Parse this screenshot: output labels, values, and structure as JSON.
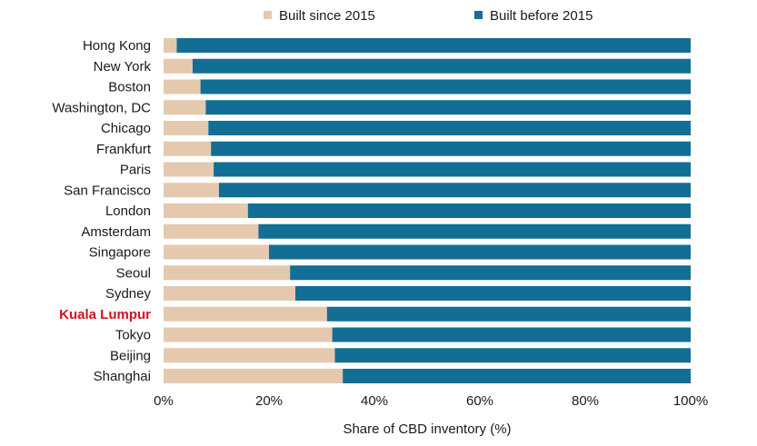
{
  "chart_data": {
    "type": "bar",
    "orientation": "horizontal",
    "stacked": true,
    "categories": [
      "Hong Kong",
      "New York",
      "Boston",
      "Washington, DC",
      "Chicago",
      "Frankfurt",
      "Paris",
      "San Francisco",
      "London",
      "Amsterdam",
      "Singapore",
      "Seoul",
      "Sydney",
      "Kuala Lumpur",
      "Tokyo",
      "Beijing",
      "Shanghai"
    ],
    "highlight_category": "Kuala Lumpur",
    "series": [
      {
        "name": "Built since 2015",
        "color": "#e5c9ae",
        "values": [
          2.5,
          5.5,
          7,
          8,
          8.5,
          9,
          9.5,
          10.5,
          16,
          18,
          20,
          24,
          25,
          31,
          32,
          32.5,
          34
        ]
      },
      {
        "name": "Built before 2015",
        "color": "#126e94",
        "values": [
          97.5,
          94.5,
          93,
          92,
          91.5,
          91,
          90.5,
          89.5,
          84,
          82,
          80,
          76,
          75,
          69,
          68,
          67.5,
          66
        ]
      }
    ],
    "x_ticks": [
      "0%",
      "20%",
      "40%",
      "60%",
      "80%",
      "100%"
    ],
    "xlim": [
      0,
      100
    ],
    "xlabel": "Share of CBD inventory (%)",
    "legend_position": "top",
    "highlight_color": "#d0141e"
  }
}
